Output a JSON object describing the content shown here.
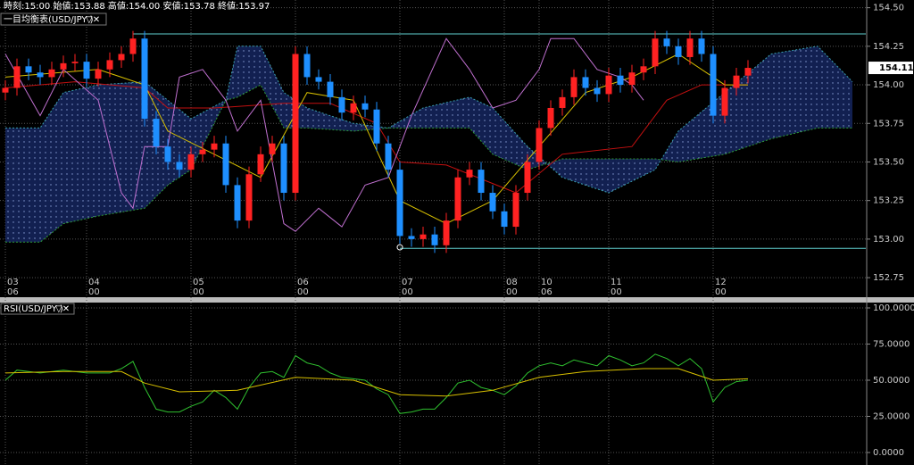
{
  "header": {
    "info": "時刻:15:00 始値:153.88 高値:154.00 安値:153.78 終値:153.97"
  },
  "chart_data": [
    {
      "type": "candlestick",
      "title": "一目均衡表(USD/JPY )",
      "open": [
        153.95,
        153.98,
        154.12,
        154.08,
        154.05,
        154.1,
        154.14,
        154.15,
        154.04,
        154.1,
        154.16,
        154.2,
        154.3,
        153.78,
        153.6,
        153.5,
        153.45,
        153.55,
        153.58,
        153.62,
        153.35,
        153.12,
        153.42,
        153.55,
        153.62,
        153.3,
        154.2,
        154.05,
        154.02,
        153.92,
        153.82,
        153.88,
        153.84,
        153.62,
        153.45,
        153.02,
        153.0,
        153.03,
        152.96,
        153.12,
        153.4,
        153.45,
        153.3,
        153.18,
        153.08,
        153.3,
        153.5,
        153.72,
        153.85,
        153.92,
        154.05,
        153.98,
        153.94,
        154.06,
        154.0,
        154.08,
        154.12,
        154.3,
        154.25,
        154.18,
        154.3,
        154.2,
        153.8,
        153.98,
        154.06
      ],
      "high": [
        154.03,
        154.17,
        154.17,
        154.13,
        154.15,
        154.19,
        154.2,
        154.2,
        154.15,
        154.21,
        154.25,
        154.35,
        154.35,
        153.83,
        153.65,
        153.55,
        153.6,
        153.63,
        153.67,
        153.67,
        153.4,
        153.47,
        153.6,
        153.67,
        153.67,
        154.25,
        154.25,
        154.1,
        154.07,
        153.97,
        153.93,
        153.93,
        153.89,
        153.67,
        153.5,
        153.07,
        153.08,
        153.08,
        153.17,
        153.45,
        153.5,
        153.5,
        153.35,
        153.23,
        153.35,
        153.55,
        153.77,
        153.9,
        153.97,
        154.1,
        154.1,
        154.03,
        154.11,
        154.11,
        154.13,
        154.17,
        154.35,
        154.35,
        154.3,
        154.35,
        154.35,
        154.25,
        154.03,
        154.11,
        154.16
      ],
      "low": [
        153.9,
        153.93,
        154.03,
        154.0,
        154.0,
        154.05,
        154.09,
        153.99,
        153.99,
        154.05,
        154.11,
        154.15,
        153.73,
        153.55,
        153.45,
        153.4,
        153.4,
        153.5,
        153.53,
        153.3,
        153.07,
        153.07,
        153.37,
        153.5,
        153.25,
        153.25,
        154.0,
        153.97,
        153.87,
        153.77,
        153.77,
        153.79,
        153.57,
        153.4,
        152.97,
        152.95,
        152.95,
        152.91,
        152.91,
        153.07,
        153.35,
        153.25,
        153.13,
        153.03,
        153.03,
        153.25,
        153.45,
        153.67,
        153.8,
        153.87,
        153.93,
        153.89,
        153.89,
        153.95,
        153.95,
        154.03,
        154.07,
        154.2,
        154.13,
        154.13,
        154.15,
        153.75,
        153.75,
        153.93,
        154.01
      ],
      "close": [
        153.98,
        154.12,
        154.08,
        154.05,
        154.1,
        154.14,
        154.15,
        154.04,
        154.1,
        154.16,
        154.2,
        154.3,
        153.78,
        153.6,
        153.5,
        153.45,
        153.55,
        153.58,
        153.62,
        153.35,
        153.12,
        153.42,
        153.55,
        153.62,
        153.3,
        154.2,
        154.05,
        154.02,
        153.92,
        153.82,
        153.88,
        153.84,
        153.62,
        153.45,
        153.02,
        153.0,
        153.03,
        152.96,
        153.12,
        153.4,
        153.45,
        153.3,
        153.18,
        153.08,
        153.3,
        153.5,
        153.72,
        153.85,
        153.92,
        154.05,
        153.98,
        153.94,
        154.06,
        154.0,
        154.08,
        154.12,
        154.3,
        154.25,
        154.18,
        154.3,
        154.2,
        153.8,
        153.98,
        154.06,
        154.11
      ],
      "colors": {
        "up": "#ff2222",
        "down": "#1e8fff"
      },
      "ylim": [
        152.71,
        154.55
      ],
      "yticks": [
        {
          "value": 154.5,
          "label": "154.50"
        },
        154.25,
        {
          "value": 154.0,
          "label": "154.00"
        },
        153.75,
        {
          "value": 153.5,
          "label": "153.50"
        },
        153.25,
        {
          "value": 153.0,
          "label": "153.00"
        },
        152.75
      ],
      "grid": true,
      "last_price": 154.11,
      "x_labels": {
        "slot": [
          0,
          7,
          16,
          25,
          34,
          43,
          46,
          52,
          61
        ],
        "day": [
          "03",
          "04",
          "05",
          "06",
          "07",
          "08",
          "10",
          "11",
          "12"
        ],
        "hour": [
          "06",
          "00",
          "00",
          "00",
          "00",
          "00",
          "06",
          "00",
          "00"
        ]
      },
      "hlines": [
        {
          "value": 154.33,
          "from": 11,
          "color": "#5fcfcf"
        },
        {
          "value": 152.94,
          "from": 34,
          "color": "#5fcfcf"
        }
      ],
      "cloud": {
        "x": [
          0,
          3,
          5,
          8,
          12,
          14,
          16,
          19,
          20,
          22,
          24,
          26,
          30,
          33,
          36,
          40,
          42,
          45,
          48,
          52,
          56,
          58,
          62,
          66,
          70,
          73
        ],
        "span_a": [
          153.72,
          153.72,
          153.95,
          154.0,
          154.02,
          153.9,
          153.78,
          153.9,
          154.25,
          154.25,
          153.95,
          153.85,
          153.75,
          153.72,
          153.85,
          153.92,
          153.85,
          153.6,
          153.4,
          153.3,
          153.45,
          153.7,
          153.95,
          154.2,
          154.25,
          154.02
        ],
        "span_b": [
          152.98,
          152.98,
          153.1,
          153.15,
          153.2,
          153.35,
          153.45,
          153.9,
          153.92,
          154.0,
          153.72,
          153.72,
          153.7,
          153.72,
          153.72,
          153.72,
          153.55,
          153.45,
          153.52,
          153.52,
          153.52,
          153.5,
          153.55,
          153.65,
          153.72,
          153.72
        ],
        "color": "#14245a",
        "edge_a": "#3aa0b0",
        "edge_b": "#2e9a3a"
      },
      "lines": [
        {
          "color": "#c41010",
          "x": [
            0,
            6,
            12,
            14,
            18,
            24,
            28,
            32,
            34,
            38,
            44,
            48,
            54,
            57,
            60,
            64
          ],
          "values": [
            153.98,
            154.02,
            153.98,
            153.85,
            153.85,
            153.88,
            153.88,
            153.75,
            153.5,
            153.48,
            153.3,
            153.55,
            153.6,
            153.9,
            154.0,
            154.0
          ]
        },
        {
          "color": "#d8c000",
          "x": [
            0,
            8,
            12,
            14,
            18,
            22,
            26,
            30,
            34,
            38,
            42,
            46,
            50,
            54,
            58,
            62,
            64
          ],
          "values": [
            154.05,
            154.1,
            154.0,
            153.7,
            153.55,
            153.4,
            153.95,
            153.9,
            153.25,
            153.1,
            153.25,
            153.6,
            153.95,
            154.05,
            154.2,
            154.0,
            154.0
          ]
        },
        {
          "color": "#c070d0",
          "x": [
            0,
            3,
            5,
            8,
            10,
            11,
            12,
            14,
            15,
            17,
            19,
            20,
            22,
            24,
            25,
            27,
            29,
            31,
            33,
            35,
            38,
            40,
            42,
            44,
            46,
            47,
            49,
            51,
            53,
            54,
            55
          ],
          "values": [
            154.2,
            153.8,
            154.1,
            153.9,
            153.3,
            153.2,
            153.6,
            153.6,
            154.05,
            154.1,
            153.9,
            153.7,
            153.9,
            153.1,
            153.05,
            153.2,
            153.08,
            153.35,
            153.4,
            153.8,
            154.3,
            154.1,
            153.85,
            153.9,
            154.1,
            154.3,
            154.3,
            154.1,
            154.05,
            154.0,
            153.9
          ]
        }
      ]
    },
    {
      "type": "line",
      "title": "RSI(USD/JPY )",
      "ylim": [
        0,
        100
      ],
      "yticks": [
        {
          "value": 100,
          "label": "100.0000"
        },
        {
          "value": 75,
          "label": "75.0000"
        },
        {
          "value": 50,
          "label": "50.0000"
        },
        {
          "value": 25,
          "label": "25.0000"
        },
        {
          "value": 0,
          "label": "0.0000"
        }
      ],
      "grid": true,
      "series": [
        {
          "color": "#2fc02f",
          "x": [
            0,
            1,
            3,
            5,
            7,
            9,
            10,
            11,
            12,
            13,
            14,
            15,
            16,
            17,
            18,
            19,
            20,
            21,
            22,
            23,
            24,
            25,
            26,
            27,
            28,
            29,
            30,
            31,
            32,
            33,
            34,
            35,
            36,
            37,
            38,
            39,
            40,
            41,
            42,
            43,
            44,
            45,
            46,
            47,
            48,
            49,
            50,
            51,
            52,
            53,
            54,
            55,
            56,
            57,
            58,
            59,
            60,
            61,
            62,
            63,
            64
          ],
          "values": [
            50,
            57,
            55,
            57,
            55,
            55,
            58,
            63,
            45,
            30,
            28,
            28,
            32,
            35,
            43,
            38,
            30,
            45,
            55,
            56,
            52,
            67,
            62,
            60,
            55,
            52,
            51,
            50,
            44,
            40,
            27,
            28,
            30,
            30,
            38,
            48,
            50,
            45,
            43,
            40,
            46,
            55,
            60,
            62,
            60,
            64,
            62,
            60,
            67,
            64,
            60,
            62,
            68,
            65,
            60,
            65,
            58,
            35,
            45,
            49,
            50
          ]
        },
        {
          "color": "#d8c000",
          "x": [
            0,
            5,
            10,
            12,
            15,
            20,
            25,
            30,
            34,
            38,
            42,
            46,
            50,
            55,
            58,
            61,
            64
          ],
          "values": [
            55,
            56,
            56,
            48,
            42,
            43,
            52,
            50,
            40,
            39,
            43,
            52,
            56,
            58,
            58,
            50,
            51
          ]
        }
      ]
    }
  ]
}
